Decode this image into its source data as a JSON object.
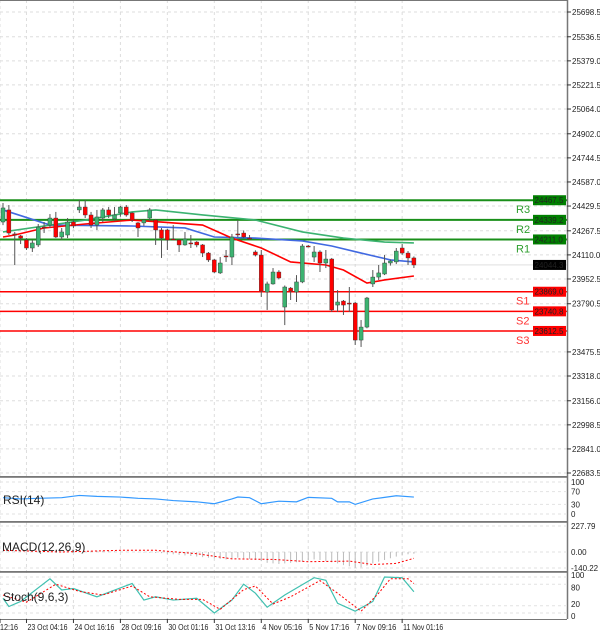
{
  "chart_data": {
    "type": "candlestick",
    "current_price": "24044.3",
    "y_ticks": [
      "25698.5",
      "25536.5",
      "25379.0",
      "25221.5",
      "25064.0",
      "24902.0",
      "24744.5",
      "24587.0",
      "24429.5",
      "24267.5",
      "24110.0",
      "23952.5",
      "23790.5",
      "23475.5",
      "23318.0",
      "23156.0",
      "22998.5",
      "22841.0",
      "22683.5"
    ],
    "ylim": [
      22683.5,
      25698.5
    ],
    "x_ticks": [
      {
        "label": "12:16",
        "bar": 0
      },
      {
        "label": "23 Oct 04:16",
        "bar": 4
      },
      {
        "label": "24 Oct 16:16",
        "bar": 12
      },
      {
        "label": "28 Oct 09:16",
        "bar": 20
      },
      {
        "label": "30 Oct 01:16",
        "bar": 28
      },
      {
        "label": "31 Oct 13:16",
        "bar": 36
      },
      {
        "label": "4 Nov 05:16",
        "bar": 44
      },
      {
        "label": "5 Nov 17:16",
        "bar": 52
      },
      {
        "label": "7 Nov 09:16",
        "bar": 60
      },
      {
        "label": "11 Nov 01:16",
        "bar": 68
      }
    ],
    "grid": true,
    "pivots": [
      {
        "name": "R3",
        "value": "24467.5",
        "type": "resistance"
      },
      {
        "name": "R2",
        "value": "24339.2",
        "type": "resistance"
      },
      {
        "name": "R1",
        "value": "24211.0",
        "type": "resistance"
      },
      {
        "name": "S1",
        "value": "23869.0",
        "type": "support"
      },
      {
        "name": "S2",
        "value": "23740.8",
        "type": "support"
      },
      {
        "name": "S3",
        "value": "23612.5",
        "type": "support"
      }
    ],
    "candles_ohlc": [
      [
        24325,
        24449,
        24305,
        24417
      ],
      [
        24404,
        24436,
        24240,
        24253
      ],
      [
        24247,
        24260,
        24044,
        24240
      ],
      [
        24234,
        24240,
        24181,
        24220
      ],
      [
        24207,
        24220,
        24142,
        24155
      ],
      [
        24155,
        24207,
        24129,
        24188
      ],
      [
        24175,
        24312,
        24162,
        24292
      ],
      [
        24292,
        24325,
        24253,
        24286
      ],
      [
        24305,
        24377,
        24286,
        24351
      ],
      [
        24351,
        24391,
        24220,
        24227
      ],
      [
        24227,
        24286,
        24207,
        24260
      ],
      [
        24240,
        24351,
        24220,
        24325
      ],
      [
        24325,
        24338,
        24286,
        24299
      ],
      [
        24404,
        24469,
        24384,
        24423
      ],
      [
        24423,
        24469,
        24351,
        24371
      ],
      [
        24371,
        24391,
        24286,
        24305
      ],
      [
        24305,
        24404,
        24273,
        24358
      ],
      [
        24351,
        24417,
        24325,
        24404
      ],
      [
        24404,
        24423,
        24351,
        24371
      ],
      [
        24345,
        24423,
        24330,
        24371
      ],
      [
        24384,
        24430,
        24360,
        24423
      ],
      [
        24423,
        24436,
        24360,
        24371
      ],
      [
        24384,
        24391,
        24325,
        24338
      ],
      [
        24319,
        24325,
        24227,
        24286
      ],
      [
        24319,
        24345,
        24300,
        24338
      ],
      [
        24351,
        24417,
        24330,
        24404
      ],
      [
        24338,
        24345,
        24175,
        24273
      ],
      [
        24273,
        24286,
        24090,
        24220
      ],
      [
        24273,
        24280,
        24142,
        24207
      ],
      [
        24214,
        24305,
        24207,
        24210
      ],
      [
        24207,
        24214,
        24129,
        24175
      ],
      [
        24175,
        24260,
        24170,
        24214
      ],
      [
        24188,
        24240,
        24155,
        24185
      ],
      [
        24194,
        24200,
        24160,
        24175
      ],
      [
        24175,
        24181,
        24096,
        24122
      ],
      [
        24122,
        24129,
        24064,
        24077
      ],
      [
        24077,
        24083,
        23990,
        23998
      ],
      [
        23992,
        24096,
        23985,
        24057
      ],
      [
        24103,
        24142,
        24064,
        24100
      ],
      [
        24096,
        24247,
        24044,
        24227
      ],
      [
        24247,
        24338,
        24227,
        24245
      ],
      [
        24253,
        24270,
        24220,
        24227
      ],
      [
        24220,
        24240,
        24207,
        24215
      ],
      [
        24129,
        24140,
        24100,
        24109
      ],
      [
        24109,
        24142,
        23835,
        23874
      ],
      [
        23867,
        23935,
        23750,
        23920
      ],
      [
        23920,
        24024,
        23915,
        23998
      ],
      [
        23998,
        24010,
        23950,
        23959
      ],
      [
        23769,
        23910,
        23651,
        23900
      ],
      [
        23893,
        23900,
        23815,
        23874
      ],
      [
        23867,
        23978,
        23802,
        23933
      ],
      [
        23933,
        24181,
        23925,
        24168
      ],
      [
        24168,
        24175,
        24160,
        24165
      ],
      [
        24096,
        24168,
        24064,
        24129
      ],
      [
        24129,
        24140,
        23998,
        24057
      ],
      [
        24057,
        24142,
        24024,
        24083
      ],
      [
        24083,
        24090,
        23737,
        23750
      ],
      [
        23782,
        23880,
        23737,
        23802
      ],
      [
        23808,
        23815,
        23717,
        23782
      ],
      [
        23795,
        23900,
        23737,
        23790
      ],
      [
        23795,
        23802,
        23521,
        23553
      ],
      [
        23553,
        23684,
        23508,
        23638
      ],
      [
        23638,
        23835,
        23630,
        23828
      ],
      [
        23920,
        24011,
        23900,
        23965
      ],
      [
        23965,
        24044,
        23946,
        23992
      ],
      [
        23985,
        24109,
        23978,
        24057
      ],
      [
        24057,
        24080,
        24040,
        24070
      ],
      [
        24064,
        24155,
        24050,
        24135
      ],
      [
        24155,
        24181,
        24110,
        24122
      ],
      [
        24122,
        24135,
        24044,
        24090
      ],
      [
        24090,
        24100,
        24024,
        24044
      ]
    ],
    "moving_averages": [
      {
        "color": "#4169e1",
        "points": [
          [
            0,
            24404
          ],
          [
            8,
            24305
          ],
          [
            22,
            24299
          ],
          [
            31,
            24286
          ],
          [
            36,
            24227
          ],
          [
            43,
            24220
          ],
          [
            51,
            24201
          ],
          [
            56,
            24168
          ],
          [
            61,
            24122
          ],
          [
            66,
            24077
          ],
          [
            70,
            24064
          ]
        ]
      },
      {
        "color": "#3cb371",
        "points": [
          [
            0,
            24260
          ],
          [
            7,
            24299
          ],
          [
            14,
            24338
          ],
          [
            22,
            24391
          ],
          [
            26,
            24404
          ],
          [
            34,
            24371
          ],
          [
            43,
            24338
          ],
          [
            51,
            24260
          ],
          [
            58,
            24220
          ],
          [
            65,
            24194
          ],
          [
            70,
            24188
          ]
        ]
      },
      {
        "color": "#ff0000",
        "points": [
          [
            0,
            24227
          ],
          [
            2,
            24240
          ],
          [
            7,
            24286
          ],
          [
            14,
            24312
          ],
          [
            22,
            24338
          ],
          [
            27,
            24325
          ],
          [
            34,
            24305
          ],
          [
            39,
            24220
          ],
          [
            44,
            24155
          ],
          [
            49,
            24064
          ],
          [
            55,
            24044
          ],
          [
            58,
            24011
          ],
          [
            62,
            23926
          ],
          [
            65,
            23946
          ],
          [
            70,
            23972
          ]
        ]
      }
    ],
    "indicators": {
      "rsi": {
        "label": "RSI(14)",
        "ticks": [
          "100",
          "70",
          "30",
          "0"
        ],
        "ylim": [
          0,
          100
        ],
        "color": "#3399ff",
        "points": [
          [
            0,
            51
          ],
          [
            3,
            47
          ],
          [
            6,
            49
          ],
          [
            10,
            51
          ],
          [
            13,
            58
          ],
          [
            16,
            55
          ],
          [
            20,
            53
          ],
          [
            23,
            49
          ],
          [
            26,
            47
          ],
          [
            29,
            42
          ],
          [
            33,
            38
          ],
          [
            36,
            32
          ],
          [
            39,
            47
          ],
          [
            40,
            53
          ],
          [
            42,
            51
          ],
          [
            44,
            32
          ],
          [
            47,
            40
          ],
          [
            50,
            38
          ],
          [
            52,
            52
          ],
          [
            56,
            49
          ],
          [
            57,
            38
          ],
          [
            59,
            38
          ],
          [
            60,
            30
          ],
          [
            63,
            47
          ],
          [
            65,
            52
          ],
          [
            67,
            57
          ],
          [
            70,
            53
          ]
        ]
      },
      "macd": {
        "label": "MACD(12,26,9)",
        "ticks": [
          "227.79",
          "0.00",
          "-140.22"
        ],
        "ylim": [
          -140.22,
          227.79
        ],
        "histogram_color": "#bbbbbb",
        "signal_color": "#ff0000",
        "histogram": [
          10,
          8,
          6,
          5,
          4,
          3,
          2,
          2,
          1,
          0,
          0,
          2,
          4,
          6,
          8,
          10,
          12,
          10,
          8,
          6,
          4,
          2,
          0,
          -2,
          -4,
          -6,
          -8,
          -10,
          -15,
          -20,
          -25,
          -30,
          -35,
          -40,
          -45,
          -50,
          -55,
          -60,
          -65,
          -55,
          -50,
          -55,
          -60,
          -70,
          -80,
          -95,
          -100,
          -105,
          -100,
          -95,
          -90,
          -85,
          -70,
          -65,
          -70,
          -80,
          -90,
          -100,
          -115,
          -125,
          -140,
          -135,
          -120,
          -100,
          -85,
          -70,
          -55,
          -40,
          -30,
          -20,
          -15
        ],
        "signal": [
          [
            0,
            15
          ],
          [
            10,
            0
          ],
          [
            20,
            15
          ],
          [
            26,
            15
          ],
          [
            33,
            -15
          ],
          [
            39,
            -60
          ],
          [
            46,
            -65
          ],
          [
            52,
            -85
          ],
          [
            59,
            -80
          ],
          [
            63,
            -110
          ],
          [
            67,
            -100
          ],
          [
            70,
            -55
          ]
        ]
      },
      "stoch": {
        "label": "Stoch(9,6,3)",
        "ticks": [
          "100",
          "80",
          "20",
          "0"
        ],
        "ylim": [
          0,
          100
        ],
        "main_color": "#40c0b0",
        "signal_color": "#ff0000",
        "main": [
          [
            0,
            41
          ],
          [
            1,
            18
          ],
          [
            3,
            32
          ],
          [
            8,
            95
          ],
          [
            10,
            64
          ],
          [
            12,
            68
          ],
          [
            16,
            45
          ],
          [
            22,
            82
          ],
          [
            24,
            36
          ],
          [
            26,
            45
          ],
          [
            29,
            36
          ],
          [
            33,
            41
          ],
          [
            36,
            0
          ],
          [
            39,
            36
          ],
          [
            41,
            80
          ],
          [
            43,
            55
          ],
          [
            45,
            16
          ],
          [
            48,
            50
          ],
          [
            53,
            98
          ],
          [
            55,
            91
          ],
          [
            57,
            27
          ],
          [
            60,
            5
          ],
          [
            63,
            32
          ],
          [
            65,
            100
          ],
          [
            68,
            98
          ],
          [
            70,
            59
          ]
        ],
        "signal": [
          [
            0,
            50
          ],
          [
            4,
            30
          ],
          [
            9,
            80
          ],
          [
            13,
            60
          ],
          [
            17,
            50
          ],
          [
            22,
            75
          ],
          [
            25,
            45
          ],
          [
            30,
            38
          ],
          [
            34,
            38
          ],
          [
            37,
            10
          ],
          [
            41,
            65
          ],
          [
            43,
            75
          ],
          [
            46,
            25
          ],
          [
            49,
            45
          ],
          [
            54,
            90
          ],
          [
            57,
            55
          ],
          [
            61,
            5
          ],
          [
            64,
            55
          ],
          [
            66,
            95
          ],
          [
            69,
            95
          ],
          [
            70,
            82
          ]
        ]
      }
    },
    "colors": {
      "bull": "#3cb371",
      "bear": "#ff0000",
      "resistance": "#1a8f1a",
      "support": "#ff0000",
      "current_tag": "#000000"
    }
  }
}
